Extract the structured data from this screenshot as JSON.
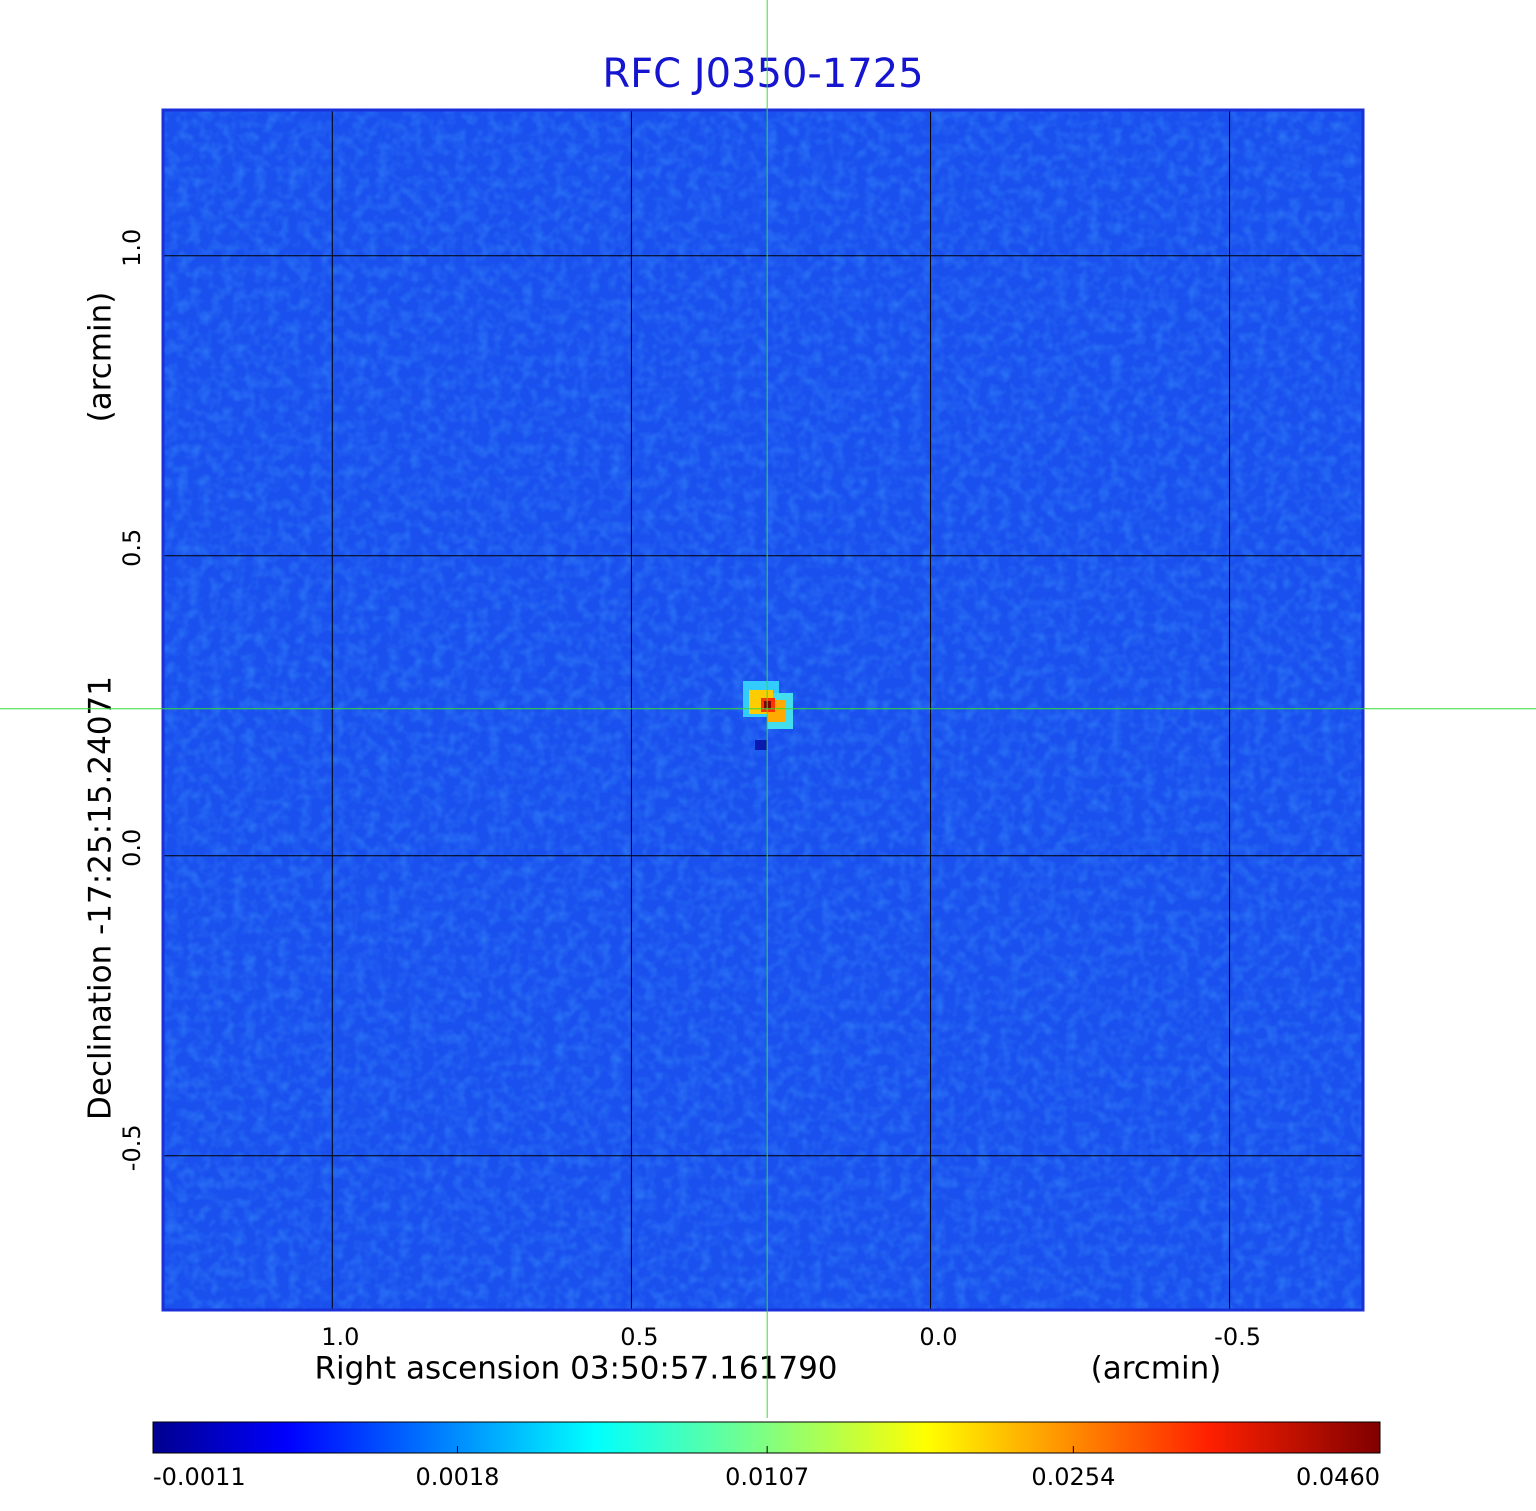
{
  "chart_data": {
    "type": "image",
    "title": "RFC J0350-1725",
    "xlabel": "Right ascension  03:50:57.161790",
    "xunit": "(arcmin)",
    "ylabel": "Declination  -17:25:15.24071",
    "yunit": "(arcmin)",
    "xlim": [
      1.283,
      -0.723
    ],
    "ylim": [
      -0.757,
      1.243
    ],
    "xticks": [
      {
        "value": 1,
        "label": "1.0"
      },
      0.5,
      {
        "value": 0,
        "label": "0.0"
      },
      -0.5
    ],
    "yticks": [
      {
        "value": 1,
        "label": "1.0"
      },
      0.5,
      {
        "value": 0,
        "label": "0.0"
      },
      -0.5
    ],
    "grid": true,
    "crosshair": {
      "x": 0.273,
      "y": 0.245,
      "color": "#33dd33"
    },
    "colorbar": {
      "colormap": "jet",
      "scale": "sqrt",
      "ticks": [
        -0.0011,
        0.0018,
        0.0107,
        0.0254,
        {
          "value": 0.046,
          "label": "0.0460"
        }
      ]
    }
  }
}
